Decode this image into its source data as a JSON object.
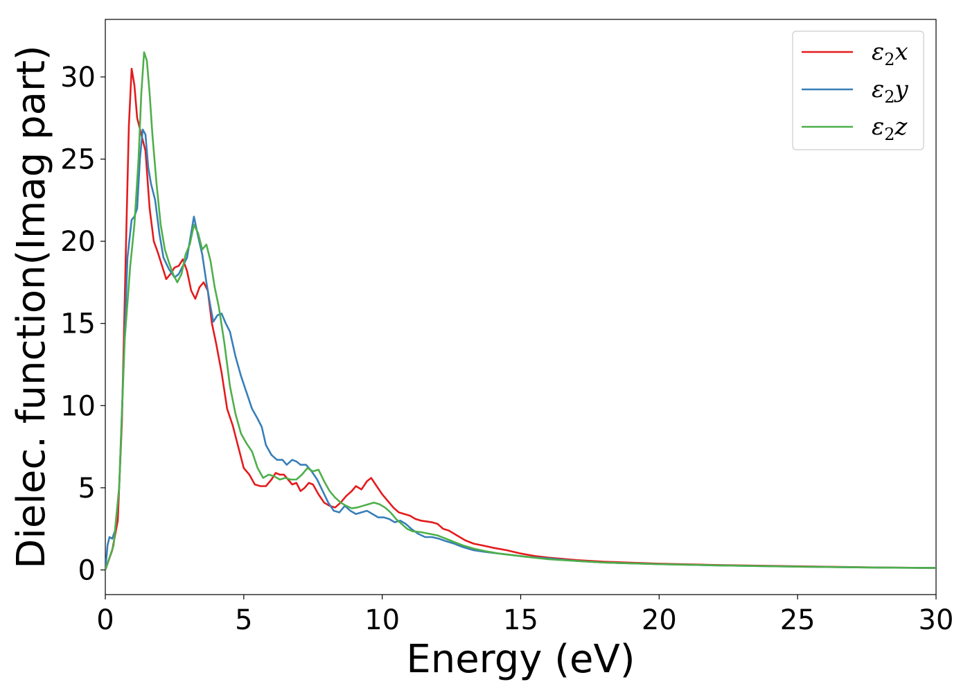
{
  "chart_data": {
    "type": "line",
    "title": "",
    "xlabel": "Energy (eV)",
    "ylabel": "Dielec. function(Imag part)",
    "xlim": [
      0,
      30
    ],
    "ylim": [
      -1.5,
      33.5
    ],
    "xticks": [
      0,
      5,
      10,
      15,
      20,
      25,
      30
    ],
    "yticks": [
      0,
      5,
      10,
      15,
      20,
      25,
      30
    ],
    "grid": false,
    "legend_position": "top-right",
    "series": [
      {
        "name": "ε₂x",
        "legend_base": "ε",
        "legend_sub": "2",
        "legend_suffix": "x",
        "color": "#e41a1c",
        "points": [
          [
            0,
            0
          ],
          [
            0.25,
            1.2
          ],
          [
            0.45,
            3
          ],
          [
            0.6,
            9
          ],
          [
            0.75,
            20
          ],
          [
            0.85,
            27
          ],
          [
            0.95,
            30.5
          ],
          [
            1.05,
            29.5
          ],
          [
            1.15,
            27.5
          ],
          [
            1.3,
            26.5
          ],
          [
            1.45,
            25.5
          ],
          [
            1.6,
            22
          ],
          [
            1.75,
            20
          ],
          [
            1.9,
            19.3
          ],
          [
            2.05,
            18.5
          ],
          [
            2.2,
            17.7
          ],
          [
            2.35,
            18
          ],
          [
            2.5,
            18.4
          ],
          [
            2.65,
            18.5
          ],
          [
            2.8,
            18.9
          ],
          [
            2.95,
            18.2
          ],
          [
            3.1,
            17
          ],
          [
            3.25,
            16.5
          ],
          [
            3.4,
            17.2
          ],
          [
            3.55,
            17.5
          ],
          [
            3.7,
            17
          ],
          [
            3.85,
            15
          ],
          [
            4.0,
            13.8
          ],
          [
            4.2,
            12
          ],
          [
            4.4,
            9.8
          ],
          [
            4.6,
            8.8
          ],
          [
            4.8,
            7.5
          ],
          [
            5.0,
            6.2
          ],
          [
            5.2,
            5.8
          ],
          [
            5.4,
            5.2
          ],
          [
            5.6,
            5.1
          ],
          [
            5.8,
            5.1
          ],
          [
            6.0,
            5.5
          ],
          [
            6.15,
            5.9
          ],
          [
            6.3,
            5.8
          ],
          [
            6.45,
            5.8
          ],
          [
            6.6,
            5.5
          ],
          [
            6.75,
            5.2
          ],
          [
            6.9,
            5.3
          ],
          [
            7.05,
            4.8
          ],
          [
            7.2,
            5
          ],
          [
            7.35,
            5.3
          ],
          [
            7.5,
            5.2
          ],
          [
            7.7,
            4.6
          ],
          [
            7.9,
            4.1
          ],
          [
            8.1,
            3.9
          ],
          [
            8.3,
            3.8
          ],
          [
            8.5,
            4.1
          ],
          [
            8.7,
            4.5
          ],
          [
            8.9,
            4.8
          ],
          [
            9.05,
            5.1
          ],
          [
            9.25,
            4.9
          ],
          [
            9.45,
            5.4
          ],
          [
            9.6,
            5.6
          ],
          [
            9.8,
            5.1
          ],
          [
            10.0,
            4.6
          ],
          [
            10.2,
            4.2
          ],
          [
            10.4,
            3.8
          ],
          [
            10.6,
            3.5
          ],
          [
            10.8,
            3.4
          ],
          [
            11.0,
            3.3
          ],
          [
            11.2,
            3.1
          ],
          [
            11.4,
            3
          ],
          [
            11.6,
            2.95
          ],
          [
            11.8,
            2.9
          ],
          [
            12.0,
            2.8
          ],
          [
            12.2,
            2.5
          ],
          [
            12.4,
            2.4
          ],
          [
            12.6,
            2.2
          ],
          [
            12.8,
            2
          ],
          [
            13.0,
            1.8
          ],
          [
            13.3,
            1.6
          ],
          [
            13.6,
            1.5
          ],
          [
            14.0,
            1.35
          ],
          [
            14.5,
            1.2
          ],
          [
            15.0,
            1
          ],
          [
            15.5,
            0.85
          ],
          [
            16.0,
            0.75
          ],
          [
            17.0,
            0.6
          ],
          [
            18.0,
            0.5
          ],
          [
            20.0,
            0.38
          ],
          [
            22.0,
            0.3
          ],
          [
            25.0,
            0.22
          ],
          [
            28.0,
            0.15
          ],
          [
            30.0,
            0.12
          ]
        ]
      },
      {
        "name": "ε₂y",
        "legend_base": "ε",
        "legend_sub": "2",
        "legend_suffix": "y",
        "color": "#377eb8",
        "points": [
          [
            0,
            0
          ],
          [
            0.08,
            1.5
          ],
          [
            0.15,
            2
          ],
          [
            0.25,
            1.9
          ],
          [
            0.35,
            2.4
          ],
          [
            0.5,
            5
          ],
          [
            0.65,
            12
          ],
          [
            0.8,
            19
          ],
          [
            0.95,
            21.3
          ],
          [
            1.05,
            21.5
          ],
          [
            1.15,
            22
          ],
          [
            1.25,
            25
          ],
          [
            1.35,
            26.8
          ],
          [
            1.45,
            26.5
          ],
          [
            1.55,
            24.5
          ],
          [
            1.65,
            23.5
          ],
          [
            1.8,
            22.5
          ],
          [
            1.95,
            20.5
          ],
          [
            2.1,
            19
          ],
          [
            2.3,
            18.3
          ],
          [
            2.5,
            17.8
          ],
          [
            2.65,
            18
          ],
          [
            2.8,
            18.5
          ],
          [
            2.95,
            19
          ],
          [
            3.1,
            20.5
          ],
          [
            3.2,
            21.5
          ],
          [
            3.35,
            20.3
          ],
          [
            3.5,
            19.2
          ],
          [
            3.65,
            17.5
          ],
          [
            3.8,
            16
          ],
          [
            3.9,
            15.1
          ],
          [
            4.05,
            15.5
          ],
          [
            4.2,
            15.6
          ],
          [
            4.35,
            15
          ],
          [
            4.5,
            14.5
          ],
          [
            4.7,
            13
          ],
          [
            4.9,
            11.8
          ],
          [
            5.1,
            10.8
          ],
          [
            5.3,
            9.8
          ],
          [
            5.5,
            9.2
          ],
          [
            5.65,
            8.7
          ],
          [
            5.8,
            7.6
          ],
          [
            6.0,
            7
          ],
          [
            6.2,
            6.7
          ],
          [
            6.4,
            6.7
          ],
          [
            6.55,
            6.4
          ],
          [
            6.75,
            6.7
          ],
          [
            6.9,
            6.6
          ],
          [
            7.05,
            6.4
          ],
          [
            7.25,
            6.4
          ],
          [
            7.45,
            6
          ],
          [
            7.65,
            5.5
          ],
          [
            7.85,
            4.8
          ],
          [
            8.05,
            4.1
          ],
          [
            8.25,
            3.6
          ],
          [
            8.45,
            3.5
          ],
          [
            8.65,
            3.9
          ],
          [
            8.85,
            3.6
          ],
          [
            9.05,
            3.4
          ],
          [
            9.25,
            3.5
          ],
          [
            9.45,
            3.6
          ],
          [
            9.65,
            3.4
          ],
          [
            9.85,
            3.2
          ],
          [
            10.05,
            3.2
          ],
          [
            10.25,
            3.1
          ],
          [
            10.45,
            2.9
          ],
          [
            10.65,
            3
          ],
          [
            10.85,
            2.8
          ],
          [
            11.05,
            2.5
          ],
          [
            11.3,
            2.2
          ],
          [
            11.55,
            2
          ],
          [
            11.8,
            2
          ],
          [
            12.05,
            1.9
          ],
          [
            12.3,
            1.75
          ],
          [
            12.6,
            1.6
          ],
          [
            12.9,
            1.4
          ],
          [
            13.3,
            1.2
          ],
          [
            13.7,
            1.1
          ],
          [
            14.2,
            1
          ],
          [
            14.7,
            0.9
          ],
          [
            15.2,
            0.8
          ],
          [
            16.0,
            0.7
          ],
          [
            17.0,
            0.55
          ],
          [
            18.0,
            0.45
          ],
          [
            20.0,
            0.35
          ],
          [
            22.0,
            0.28
          ],
          [
            25.0,
            0.2
          ],
          [
            28.0,
            0.14
          ],
          [
            30.0,
            0.12
          ]
        ]
      },
      {
        "name": "ε₂z",
        "legend_base": "ε",
        "legend_sub": "2",
        "legend_suffix": "z",
        "color": "#4daf4a",
        "points": [
          [
            0,
            0
          ],
          [
            0.3,
            1.5
          ],
          [
            0.5,
            5
          ],
          [
            0.7,
            14
          ],
          [
            0.9,
            18.5
          ],
          [
            1.05,
            21
          ],
          [
            1.2,
            25
          ],
          [
            1.3,
            29
          ],
          [
            1.4,
            31.5
          ],
          [
            1.5,
            31
          ],
          [
            1.6,
            29
          ],
          [
            1.7,
            26.5
          ],
          [
            1.85,
            23.5
          ],
          [
            2.0,
            21
          ],
          [
            2.15,
            19.5
          ],
          [
            2.3,
            18.7
          ],
          [
            2.45,
            18
          ],
          [
            2.6,
            17.5
          ],
          [
            2.75,
            18
          ],
          [
            2.9,
            19.2
          ],
          [
            3.05,
            19.8
          ],
          [
            3.2,
            21
          ],
          [
            3.35,
            20.5
          ],
          [
            3.5,
            19.5
          ],
          [
            3.65,
            19.8
          ],
          [
            3.8,
            18.8
          ],
          [
            3.95,
            17.2
          ],
          [
            4.1,
            16
          ],
          [
            4.3,
            13.8
          ],
          [
            4.5,
            11.2
          ],
          [
            4.7,
            9.5
          ],
          [
            4.9,
            8.3
          ],
          [
            5.1,
            7.7
          ],
          [
            5.3,
            7.2
          ],
          [
            5.5,
            6.2
          ],
          [
            5.7,
            5.6
          ],
          [
            5.9,
            5.8
          ],
          [
            6.1,
            5.7
          ],
          [
            6.3,
            5.5
          ],
          [
            6.5,
            5.6
          ],
          [
            6.7,
            5.5
          ],
          [
            6.9,
            5.5
          ],
          [
            7.1,
            5.8
          ],
          [
            7.3,
            6.2
          ],
          [
            7.5,
            6
          ],
          [
            7.7,
            6.1
          ],
          [
            7.9,
            5.4
          ],
          [
            8.1,
            4.8
          ],
          [
            8.3,
            4.4
          ],
          [
            8.5,
            4.1
          ],
          [
            8.7,
            3.9
          ],
          [
            8.9,
            3.75
          ],
          [
            9.1,
            3.8
          ],
          [
            9.3,
            3.9
          ],
          [
            9.5,
            4
          ],
          [
            9.7,
            4.1
          ],
          [
            9.9,
            4
          ],
          [
            10.1,
            3.8
          ],
          [
            10.3,
            3.5
          ],
          [
            10.5,
            3.1
          ],
          [
            10.7,
            2.8
          ],
          [
            10.9,
            2.5
          ],
          [
            11.1,
            2.35
          ],
          [
            11.4,
            2.3
          ],
          [
            11.7,
            2.2
          ],
          [
            12.0,
            2.1
          ],
          [
            12.3,
            1.9
          ],
          [
            12.6,
            1.7
          ],
          [
            12.9,
            1.5
          ],
          [
            13.3,
            1.3
          ],
          [
            13.7,
            1.15
          ],
          [
            14.2,
            1
          ],
          [
            14.7,
            0.9
          ],
          [
            15.2,
            0.8
          ],
          [
            16.0,
            0.65
          ],
          [
            17.0,
            0.55
          ],
          [
            18.0,
            0.45
          ],
          [
            20.0,
            0.35
          ],
          [
            22.0,
            0.28
          ],
          [
            25.0,
            0.2
          ],
          [
            28.0,
            0.14
          ],
          [
            30.0,
            0.12
          ]
        ]
      }
    ]
  }
}
